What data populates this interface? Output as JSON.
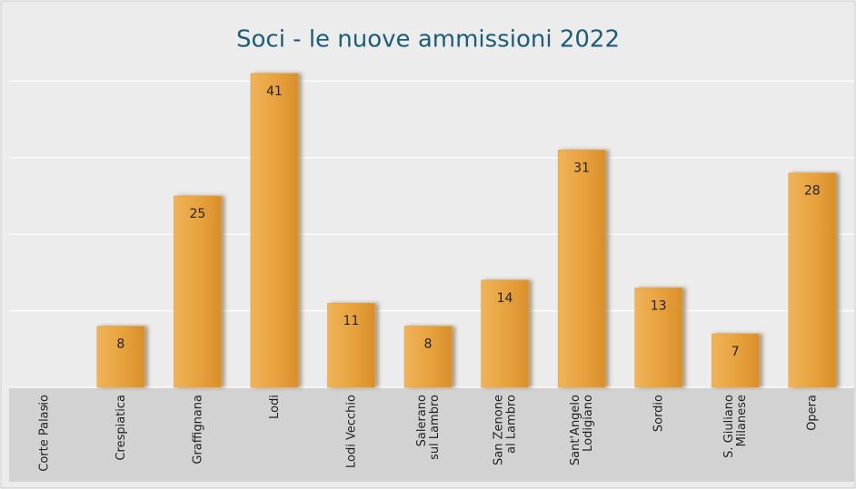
{
  "chart_data": {
    "type": "bar",
    "title": "Soci - le nuove ammissioni 2022",
    "categories": [
      "Corte Palasio",
      "Crespiatica",
      "Graffignana",
      "Lodi",
      "Lodi Vecchio",
      "Salerano\nsul Lambro",
      "San Zenone\nal Lambro",
      "Sant'Angelo\nLodigiano",
      "Sordio",
      "S. Giuliano\nMilanese",
      "Opera"
    ],
    "values": [
      0,
      8,
      25,
      41,
      11,
      8,
      14,
      31,
      13,
      7,
      28
    ],
    "value_labels": [
      "-",
      "8",
      "25",
      "41",
      "11",
      "8",
      "14",
      "31",
      "13",
      "7",
      "28"
    ],
    "color": "#e59f3c",
    "ylim": [
      0,
      50
    ],
    "yticks": [
      0,
      10,
      20,
      30,
      40
    ],
    "grid": true
  }
}
